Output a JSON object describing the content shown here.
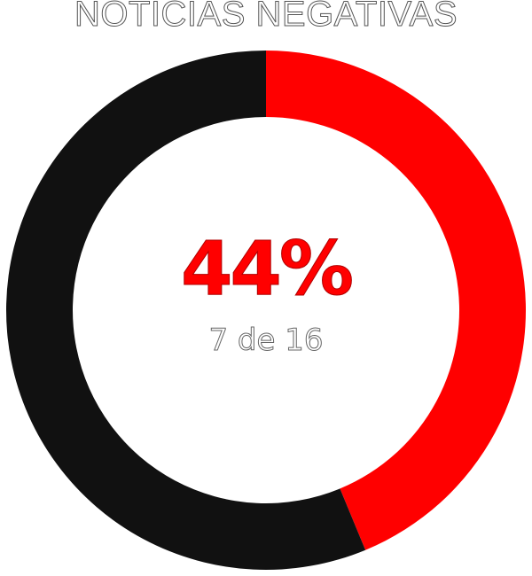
{
  "title": "NOTICIAS NEGATIVAS",
  "center": {
    "percent_text": "44%",
    "count_text": "7 de 16"
  },
  "colors": {
    "highlight": "#ff0000",
    "remainder": "#111111"
  },
  "chart_data": {
    "type": "pie",
    "title": "NOTICIAS NEGATIVAS",
    "labels": [
      "",
      ""
    ],
    "values": [
      7,
      9
    ],
    "total": 16,
    "percent": 44
  }
}
